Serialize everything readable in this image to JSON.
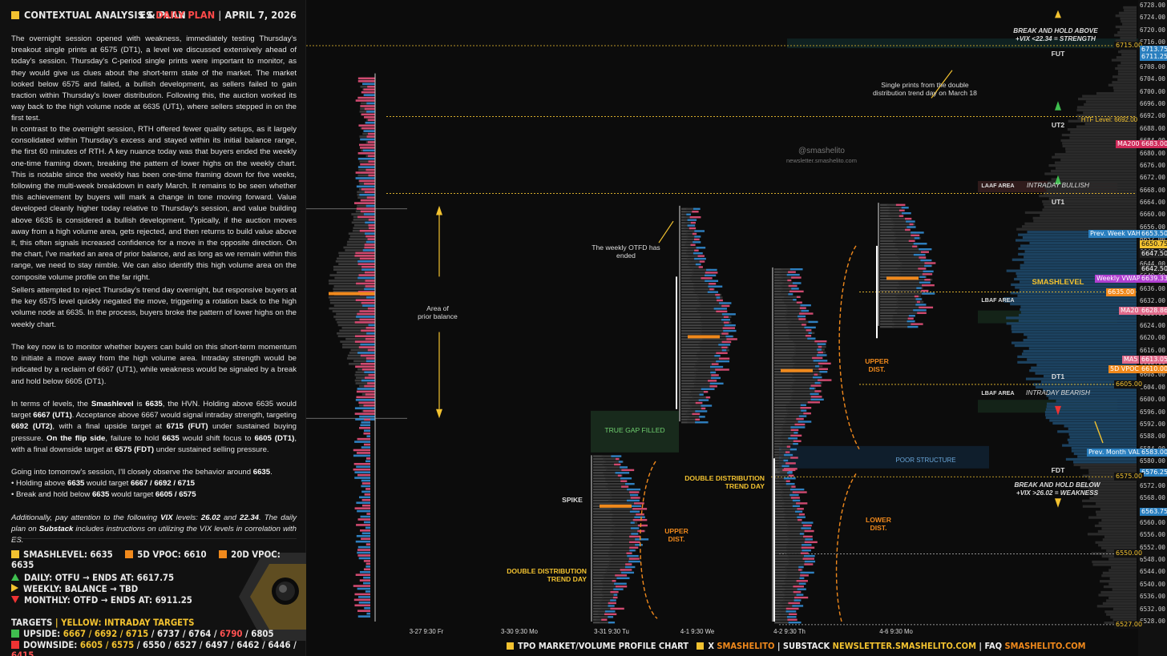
{
  "header": {
    "left_title": "CONTEXTUAL ANALYSIS & PLAN",
    "symbol": "ES",
    "plan": "DAILY PLAN",
    "separator": "|",
    "date": "APRIL 7, 2026"
  },
  "paragraphs": {
    "p1": "The overnight session opened with weakness, immediately testing Thursday's breakout single prints at 6575 (DT1), a level we discussed extensively ahead of today's session. Thursday's C-period single prints were important to monitor, as they would give us clues about the short-term state of the market. The market looked below 6575 and failed, a bullish development, as sellers failed to gain traction within Thursday's lower distribution. Following this, the auction worked its way back to the high volume node at 6635 (UT1), where sellers stepped in on the first test.",
    "p2": "In contrast to the overnight session, RTH offered fewer quality setups, as it largely consolidated within Thursday's excess and stayed within its initial balance range, the first 60 minutes of RTH. A key nuance today was that buyers ended the weekly one-time framing down, breaking the pattern of lower highs on the weekly chart. This is notable since the weekly has been one-time framing down for five weeks, following the multi-week breakdown in early March. It remains to be seen whether this achievement by buyers will mark a change in tone moving forward. Value developed cleanly higher today relative to Thursday's session, and value building above 6635 is considered a bullish development. Typically, if the auction moves away from a high volume area, gets rejected, and then returns to build value above it, this often signals increased confidence for a move in the opposite direction. On the chart, I've marked an area of prior balance, and as long as we remain within this range, we need to stay nimble. We can also identify this high volume area on the composite volume profile on the far right.",
    "p3": "Sellers attempted to reject Thursday's trend day overnight, but responsive buyers at the key 6575 level quickly negated the move, triggering a rotation back to the high volume node at 6635. In the process, buyers broke the pattern of lower highs on the weekly chart.",
    "p4": "The key now is to monitor whether buyers can build on this short-term momentum to initiate a move away from the high volume area. Intraday strength would be indicated by a reclaim of 6667 (UT1), while weakness would be signaled by a break and hold below 6605 (DT1).",
    "p5_a": "In terms of levels, the ",
    "p5_b": "Smashlevel",
    "p5_c": " is ",
    "p5_d": "6635",
    "p5_e": ", the HVN. Holding above 6635 would target ",
    "p5_f": "6667 (UT1)",
    "p5_g": ". Acceptance above 6667 would signal intraday strength, targeting ",
    "p5_h": "6692 (UT2)",
    "p5_i": ", with a final upside target at ",
    "p5_j": "6715 (FUT)",
    "p5_k": " under sustained buying pressure. ",
    "p5_l": "On the flip side",
    "p5_m": ", failure to hold ",
    "p5_n": "6635",
    "p5_o": " would shift focus to ",
    "p5_p": "6605 (DT1)",
    "p5_q": ", with a final downside target at ",
    "p5_r": "6575 (FDT)",
    "p5_s": " under sustained selling pressure.",
    "p6_a": "Going into tomorrow's session, I'll closely observe the behavior around ",
    "p6_b": "6635",
    "p6_c": ".",
    "p6_d": "• Holding above ",
    "p6_e": "6635",
    "p6_f": " would target ",
    "p6_g": "6667 / 6692 / 6715",
    "p6_h": "• Break and hold below ",
    "p6_i": "6635",
    "p6_j": " would target ",
    "p6_k": "6605 / 6575",
    "p7_a": "Additionally, pay attention to the following ",
    "p7_b": "VIX",
    "p7_c": " levels: ",
    "p7_d": "26.02",
    "p7_e": " and ",
    "p7_f": "22.34",
    "p7_g": ". The daily plan on ",
    "p7_h": "Substack",
    "p7_i": " includes instructions on utilizing the VIX levels in correlation with ES."
  },
  "levels": {
    "smash": "SMASHLEVEL: 6635",
    "vpoc5": "5D VPOC: 6610",
    "vpoc20": "20D VPOC: 6635"
  },
  "trend": {
    "daily": "DAILY: OTFU → ENDS AT: 6617.75",
    "weekly": "WEEKLY: BALANCE → TBD",
    "monthly": "MONTHLY: OTFD → ENDS AT: 6911.25"
  },
  "targets": {
    "title": "TARGETS",
    "sep": "|",
    "subtitle": "YELLOW: INTRADAY TARGETS",
    "up_label": "UPSIDE: ",
    "up_yellow": "6667 / 6692 / 6715",
    "up_rest": " / 6737 / 6764 / ",
    "up_red": "6790",
    "up_end": " / 6805",
    "down_label": "DOWNSIDE: ",
    "down_yellow": "6605 / 6575",
    "down_rest": " / 6550 / 6527 / 6497 / 6462 / 6446 / ",
    "down_red": "6415"
  },
  "footer": {
    "a": "TPO MARKET/VOLUME PROFILE CHART",
    "b": "X ",
    "b2": "SMASHELITO",
    "c": "| SUBSTACK ",
    "c2": "NEWSLETTER.SMASHELITO.COM",
    "d": "| FAQ ",
    "d2": "SMASHELITO.COM"
  },
  "chart_labels": {
    "break_above_1": "BREAK AND HOLD ABOVE",
    "break_above_2": "+VIX <22.34 = STRENGTH",
    "fut": "FUT",
    "single_prints": "Single prints from the double distribution trend day on March 18",
    "ut2": "UT2",
    "htf": "HTF Level: 6692.00",
    "watermark1": "@smashelito",
    "watermark2": "newsletter.smashelito.com",
    "laaf": "LAAF AREA",
    "intraday_bullish": "INTRADAY BULLISH",
    "ut1": "UT1",
    "weekly_otfd": "The weekly OTFD has ended",
    "area_prior_1": "Area of",
    "area_prior_2": "prior balance",
    "smashlevel": "SMASHLEVEL",
    "lbaf": "LBAF AREA",
    "upper_dist": "UPPER DIST.",
    "dt1": "DT1",
    "lbaf2": "LBAF AREA",
    "intraday_bearish": "INTRADAY BEARISH",
    "true_gap": "TRUE GAP FILLED",
    "poor_structure": "POOR STRUCTURE",
    "fdt": "FDT",
    "break_below_1": "BREAK AND HOLD BELOW",
    "break_below_2": "+VIX >26.02 = WEAKNESS",
    "ddtd1": "DOUBLE DISTRIBUTION TREND DAY",
    "spike": "SPIKE",
    "upper_dist2": "UPPER DIST.",
    "lower_dist": "LOWER DIST.",
    "ddtd2": "DOUBLE DISTRIBUTION TREND DAY"
  },
  "x_axis": [
    "3-27  9:30 Fr",
    "3-30  9:30 Mo",
    "3-31  9:30 Tu",
    "4-1  9:30 We",
    "4-2  9:30 Th",
    "4-6  9:30 Mo"
  ],
  "price_pills": [
    {
      "label": "6715.00",
      "color": "#111"
    },
    {
      "label": "6713.75",
      "color": "#2a7fbf"
    },
    {
      "label": "6711.25",
      "color": "#2a7fbf"
    },
    {
      "label": "MA200",
      "color": "#d02a5a"
    },
    {
      "label": "6683.00",
      "color": "#d02a5a"
    },
    {
      "label": "Prev. Week VAH",
      "color": "#2a7fbf"
    },
    {
      "label": "6653.50",
      "color": "#2a7fbf"
    },
    {
      "label": "6650.75",
      "color": "#f2c230"
    },
    {
      "label": "6647.50",
      "color": "#222"
    },
    {
      "label": "6642.50",
      "color": "#222"
    },
    {
      "label": "Weekly VWAP",
      "color": "#b040d0"
    },
    {
      "label": "6639.33",
      "color": "#b040d0"
    },
    {
      "label": "6635.00",
      "color": "#f0891c"
    },
    {
      "label": "MA20",
      "color": "#e06a8a"
    },
    {
      "label": "6628.86",
      "color": "#e06a8a"
    },
    {
      "label": "MA5",
      "color": "#e06a8a"
    },
    {
      "label": "6613.05",
      "color": "#e06a8a"
    },
    {
      "label": "5D VPOC",
      "color": "#f0891c"
    },
    {
      "label": "6610.00",
      "color": "#f0891c"
    },
    {
      "label": "6605.00",
      "color": "#111"
    },
    {
      "label": "Prev. Month VAL",
      "color": "#2a7fbf"
    },
    {
      "label": "6583.00",
      "color": "#2a7fbf"
    },
    {
      "label": "6576.25",
      "color": "#2a7fbf"
    },
    {
      "label": "6575.00",
      "color": "#111"
    },
    {
      "label": "6563.75",
      "color": "#2a7fbf"
    },
    {
      "label": "6550.00",
      "color": "#111"
    },
    {
      "label": "6527.00",
      "color": "#111"
    }
  ],
  "chart_data": {
    "type": "table",
    "title": "ES TPO Market / Volume Profile Chart",
    "y_axis_ticks": [
      6728,
      6724,
      6720,
      6716,
      6712,
      6708,
      6704,
      6700,
      6696,
      6692,
      6688,
      6684,
      6680,
      6676,
      6672,
      6668,
      6664,
      6660,
      6656,
      6652,
      6648,
      6644,
      6640,
      6636,
      6632,
      6628,
      6624,
      6620,
      6616,
      6612,
      6608,
      6604,
      6600,
      6596,
      6592,
      6588,
      6584,
      6580,
      6576,
      6572,
      6568,
      6564,
      6560,
      6556,
      6552,
      6548,
      6544,
      6540,
      6536,
      6532,
      6528
    ],
    "ylim": [
      6526,
      6730
    ],
    "levels": {
      "FUT": 6715,
      "UT2": 6692,
      "UT1": 6667,
      "SMASHLEVEL": 6635,
      "DT1": 6605,
      "FDT": 6575
    }
  }
}
